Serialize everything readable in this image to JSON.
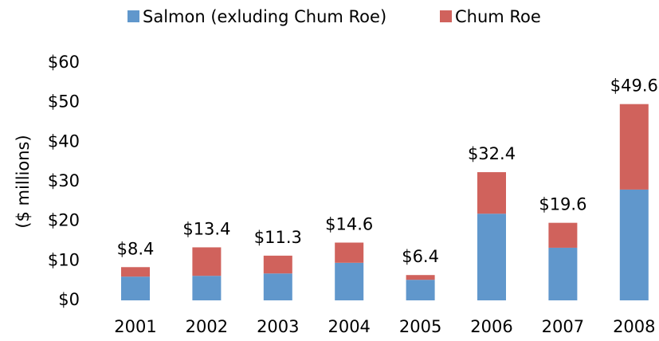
{
  "chart_data": {
    "type": "stacked-bar",
    "y_axis_label": "($ millions)",
    "categories": [
      "2001",
      "2002",
      "2003",
      "2004",
      "2005",
      "2006",
      "2007",
      "2008"
    ],
    "series": [
      {
        "name": "Salmon (exluding Chum Roe)",
        "color": "#6097cc",
        "values": [
          6.0,
          6.2,
          6.8,
          9.5,
          5.2,
          21.9,
          13.3,
          28.0
        ]
      },
      {
        "name": "Chum Roe",
        "color": "#d0625c",
        "values": [
          2.4,
          7.2,
          4.5,
          5.1,
          1.2,
          10.5,
          6.3,
          21.6
        ]
      }
    ],
    "totals": [
      8.4,
      13.4,
      11.3,
      14.6,
      6.4,
      32.4,
      19.6,
      49.6
    ],
    "total_labels": [
      "$8.4",
      "$13.4",
      "$11.3",
      "$14.6",
      "$6.4",
      "$32.4",
      "$19.6",
      "$49.6"
    ],
    "ylim": [
      0,
      60
    ],
    "yticks": [
      {
        "value": 0,
        "label": "$0"
      },
      {
        "value": 10,
        "label": "$10"
      },
      {
        "value": 20,
        "label": "$20"
      },
      {
        "value": 30,
        "label": "$30"
      },
      {
        "value": 40,
        "label": "$40"
      },
      {
        "value": 50,
        "label": "$50"
      },
      {
        "value": 60,
        "label": "$60"
      }
    ],
    "legend": "top"
  }
}
